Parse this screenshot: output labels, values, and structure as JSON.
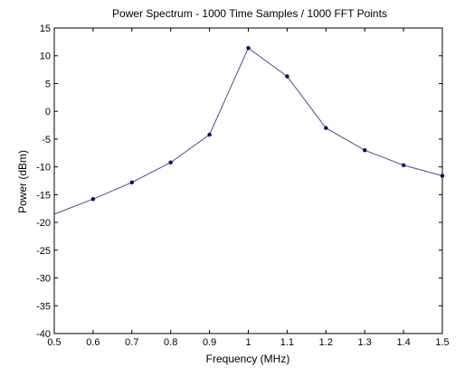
{
  "chart_data": {
    "type": "line",
    "title": "Power Spectrum - 1000 Time Samples / 1000 FFT Points",
    "xlabel": "Frequency (MHz)",
    "ylabel": "Power (dBm)",
    "xlim": [
      0.5,
      1.5
    ],
    "ylim": [
      -40,
      15
    ],
    "xticks": [
      "0.5",
      "0.6",
      "0.7",
      "0.8",
      "0.9",
      "1",
      "1.1",
      "1.2",
      "1.3",
      "1.4",
      "1.5"
    ],
    "yticks": [
      "15",
      "10",
      "5",
      "0",
      "-5",
      "-10",
      "-15",
      "-20",
      "-25",
      "-30",
      "-35",
      "-40"
    ],
    "grid": false,
    "series": [
      {
        "x": [
          0.5,
          0.6,
          0.7,
          0.8,
          0.9,
          1.0,
          1.1,
          1.2,
          1.3,
          1.4,
          1.5
        ],
        "y": [
          -18.5,
          -15.8,
          -12.8,
          -9.2,
          -4.2,
          11.4,
          6.3,
          -3.0,
          -7.0,
          -9.7,
          -11.6
        ],
        "markers_shown": [
          false,
          true,
          true,
          true,
          true,
          true,
          true,
          true,
          true,
          true,
          true
        ],
        "line_color": "#4a4a8c",
        "marker_color": "#0a0a6a"
      }
    ]
  }
}
